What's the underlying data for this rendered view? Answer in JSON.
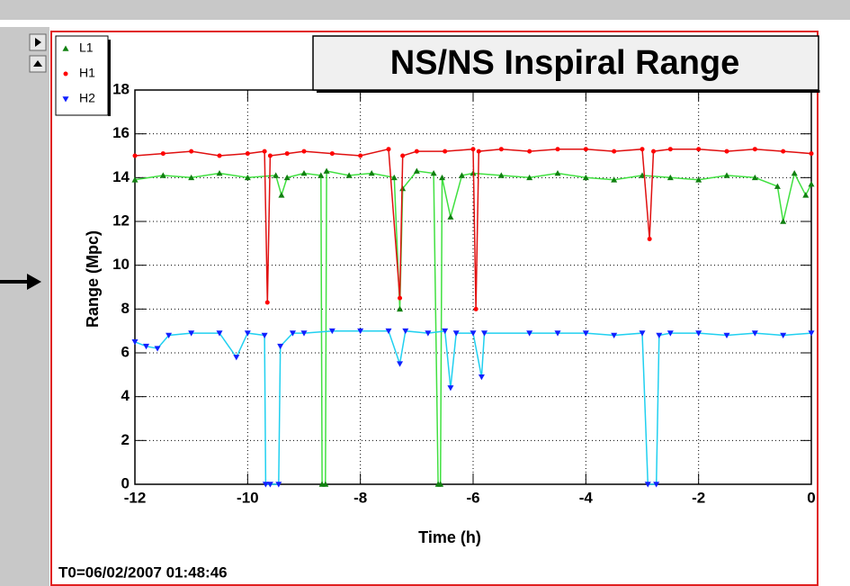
{
  "chart_data": {
    "type": "line",
    "title": "NS/NS Inspiral Range",
    "x_label": "Time (h)",
    "y_label": "Range (Mpc)",
    "annotation": "T0=06/02/2007 01:48:46",
    "xlim": [
      -12,
      0
    ],
    "ylim": [
      0,
      18
    ],
    "xticks": [
      -12,
      -10,
      -8,
      -6,
      -4,
      -2,
      0
    ],
    "yticks": [
      0,
      2,
      4,
      6,
      8,
      10,
      12,
      14,
      16,
      18
    ],
    "grid": true,
    "legend": "top-left",
    "series": [
      {
        "name": "L1",
        "color": "#108010",
        "line_color": "#40e040",
        "marker": "triangle-up",
        "x": [
          -12,
          -11.5,
          -11,
          -10.5,
          -10,
          -9.5,
          -9.4,
          -9.3,
          -9,
          -8.7,
          -8.68,
          -8.62,
          -8.6,
          -8.2,
          -7.8,
          -7.4,
          -7.3,
          -7.25,
          -7,
          -6.7,
          -6.62,
          -6.58,
          -6.55,
          -6.4,
          -6.2,
          -6,
          -5.5,
          -5,
          -4.5,
          -4,
          -3.5,
          -3,
          -2.5,
          -2,
          -1.5,
          -1,
          -0.6,
          -0.5,
          -0.3,
          -0.1,
          0
        ],
        "values": [
          13.9,
          14.1,
          14.0,
          14.2,
          14.0,
          14.1,
          13.2,
          14.0,
          14.2,
          14.1,
          0,
          0,
          14.3,
          14.1,
          14.2,
          14.0,
          8,
          13.5,
          14.3,
          14.2,
          0,
          0,
          14.0,
          12.2,
          14.1,
          14.2,
          14.1,
          14.0,
          14.2,
          14.0,
          13.9,
          14.1,
          14.0,
          13.9,
          14.1,
          14.0,
          13.6,
          12.0,
          14.2,
          13.2,
          13.7
        ]
      },
      {
        "name": "H1",
        "color": "#ff0000",
        "line_color": "#e01010",
        "marker": "circle",
        "x": [
          -12,
          -11.5,
          -11,
          -10.5,
          -10,
          -9.7,
          -9.65,
          -9.6,
          -9.3,
          -9,
          -8.5,
          -8,
          -7.5,
          -7.3,
          -7.25,
          -7,
          -6.5,
          -6.0,
          -5.95,
          -5.9,
          -5.5,
          -5,
          -4.5,
          -4,
          -3.5,
          -3,
          -2.87,
          -2.8,
          -2.5,
          -2,
          -1.5,
          -1,
          -0.5,
          0
        ],
        "values": [
          15.0,
          15.1,
          15.2,
          15.0,
          15.1,
          15.2,
          8.3,
          15.0,
          15.1,
          15.2,
          15.1,
          15.0,
          15.3,
          8.5,
          15.0,
          15.2,
          15.2,
          15.3,
          8.0,
          15.2,
          15.3,
          15.2,
          15.3,
          15.3,
          15.2,
          15.3,
          11.2,
          15.2,
          15.3,
          15.3,
          15.2,
          15.3,
          15.2,
          15.1
        ]
      },
      {
        "name": "H2",
        "color": "#1020ff",
        "line_color": "#20d0f0",
        "marker": "triangle-down",
        "x": [
          -12,
          -11.8,
          -11.6,
          -11.4,
          -11,
          -10.5,
          -10.2,
          -10,
          -9.7,
          -9.68,
          -9.6,
          -9.45,
          -9.42,
          -9.2,
          -9,
          -8.5,
          -8,
          -7.5,
          -7.3,
          -7.2,
          -6.8,
          -6.5,
          -6.4,
          -6.3,
          -6,
          -5.85,
          -5.8,
          -5,
          -4.5,
          -4,
          -3.5,
          -3,
          -2.9,
          -2.75,
          -2.7,
          -2.5,
          -2,
          -1.5,
          -1,
          -0.5,
          0
        ],
        "values": [
          6.5,
          6.3,
          6.2,
          6.8,
          6.9,
          6.9,
          5.8,
          6.9,
          6.8,
          0,
          0,
          0,
          6.3,
          6.9,
          6.9,
          7.0,
          7.0,
          7.0,
          5.5,
          7.0,
          6.9,
          7.0,
          4.4,
          6.9,
          6.9,
          4.9,
          6.9,
          6.9,
          6.9,
          6.9,
          6.8,
          6.9,
          0,
          0,
          6.8,
          6.9,
          6.9,
          6.8,
          6.9,
          6.8,
          6.9
        ]
      }
    ]
  }
}
